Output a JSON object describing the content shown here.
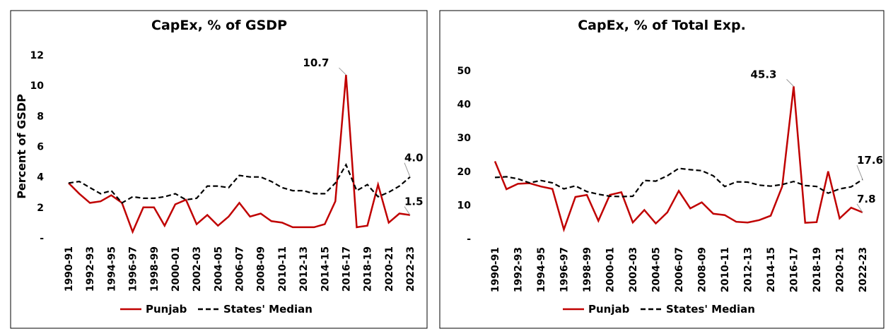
{
  "chart_data": [
    {
      "type": "line",
      "title": "CapEx, % of GSDP",
      "ylabel": "Percent of GSDP",
      "categories": [
        "1990-91",
        null,
        "1992-93",
        null,
        "1994-95",
        null,
        "1996-97",
        null,
        "1998-99",
        null,
        "2000-01",
        null,
        "2002-03",
        null,
        "2004-05",
        null,
        "2006-07",
        null,
        "2008-09",
        null,
        "2010-11",
        null,
        "2012-13",
        null,
        "2014-15",
        null,
        "2016-17",
        null,
        "2018-19",
        null,
        "2020-21",
        null,
        "2022-23"
      ],
      "series": [
        {
          "name": "Punjab",
          "color": "#c00000",
          "style": "solid",
          "values": [
            3.6,
            2.9,
            2.3,
            2.4,
            2.8,
            2.3,
            0.4,
            2.0,
            2.0,
            0.8,
            2.2,
            2.5,
            0.9,
            1.5,
            0.8,
            1.4,
            2.3,
            1.4,
            1.6,
            1.1,
            1.0,
            0.7,
            0.7,
            0.7,
            0.9,
            2.4,
            10.7,
            0.7,
            0.8,
            3.5,
            1.0,
            1.6,
            1.5
          ],
          "value_labels": [
            null,
            null,
            null,
            null,
            null,
            null,
            null,
            null,
            null,
            null,
            null,
            null,
            null,
            null,
            null,
            null,
            null,
            null,
            null,
            null,
            null,
            null,
            null,
            null,
            null,
            null,
            "10.7",
            null,
            null,
            null,
            null,
            null,
            "1.5"
          ]
        },
        {
          "name": "States' Median",
          "color": "#000000",
          "style": "dashed",
          "values": [
            3.6,
            3.7,
            3.3,
            2.9,
            3.1,
            2.3,
            2.7,
            2.6,
            2.6,
            2.7,
            2.9,
            2.5,
            2.6,
            3.4,
            3.4,
            3.3,
            4.1,
            4.0,
            4.0,
            3.7,
            3.3,
            3.1,
            3.1,
            2.9,
            2.9,
            3.6,
            4.8,
            3.1,
            3.5,
            2.7,
            3.0,
            3.4,
            4.0
          ],
          "value_labels": [
            null,
            null,
            null,
            null,
            null,
            null,
            null,
            null,
            null,
            null,
            null,
            null,
            null,
            null,
            null,
            null,
            null,
            null,
            null,
            null,
            null,
            null,
            null,
            null,
            null,
            null,
            null,
            null,
            null,
            null,
            null,
            null,
            "4.0"
          ]
        }
      ],
      "ylim": [
        0,
        12
      ],
      "yticks": [
        {
          "value": 0,
          "label": "-"
        },
        2,
        4,
        6,
        8,
        10,
        12
      ],
      "grid": false,
      "legend": "bottom"
    },
    {
      "type": "line",
      "title": "CapEx, % of Total Exp.",
      "categories": [
        "1990-91",
        null,
        "1992-93",
        null,
        "1994-95",
        null,
        "1996-97",
        null,
        "1998-99",
        null,
        "2000-01",
        null,
        "2002-03",
        null,
        "2004-05",
        null,
        "2006-07",
        null,
        "2008-09",
        null,
        "2010-11",
        null,
        "2012-13",
        null,
        "2014-15",
        null,
        "2016-17",
        null,
        "2018-19",
        null,
        "2020-21",
        null,
        "2022-23"
      ],
      "series": [
        {
          "name": "Punjab",
          "color": "#c00000",
          "style": "solid",
          "values": [
            23.0,
            14.7,
            16.3,
            16.5,
            15.5,
            14.8,
            2.7,
            12.4,
            13.0,
            5.3,
            13.0,
            13.8,
            4.8,
            8.5,
            4.5,
            7.8,
            14.2,
            9.0,
            10.8,
            7.4,
            7.0,
            5.0,
            4.8,
            5.5,
            6.8,
            15.5,
            45.3,
            4.7,
            4.9,
            20.0,
            6.0,
            9.2,
            7.8
          ],
          "value_labels": [
            null,
            null,
            null,
            null,
            null,
            null,
            null,
            null,
            null,
            null,
            null,
            null,
            null,
            null,
            null,
            null,
            null,
            null,
            null,
            null,
            null,
            null,
            null,
            null,
            null,
            null,
            "45.3",
            null,
            null,
            null,
            null,
            null,
            "7.8"
          ]
        },
        {
          "name": "States' Median",
          "color": "#000000",
          "style": "dashed",
          "values": [
            18.2,
            18.4,
            17.8,
            16.6,
            17.3,
            16.6,
            14.8,
            15.7,
            14.0,
            13.2,
            12.6,
            12.5,
            12.6,
            17.3,
            17.1,
            18.7,
            20.9,
            20.5,
            20.2,
            18.7,
            15.5,
            16.9,
            16.8,
            15.9,
            15.6,
            16.1,
            17.0,
            15.8,
            15.5,
            13.5,
            14.8,
            15.4,
            17.6
          ],
          "value_labels": [
            null,
            null,
            null,
            null,
            null,
            null,
            null,
            null,
            null,
            null,
            null,
            null,
            null,
            null,
            null,
            null,
            null,
            null,
            null,
            null,
            null,
            null,
            null,
            null,
            null,
            null,
            null,
            null,
            null,
            null,
            null,
            null,
            "17.6"
          ]
        }
      ],
      "ylim": [
        0,
        50
      ],
      "yticks": [
        {
          "value": 0,
          "label": "-"
        },
        10,
        20,
        30,
        40,
        50
      ],
      "grid": false,
      "legend": "bottom"
    }
  ]
}
